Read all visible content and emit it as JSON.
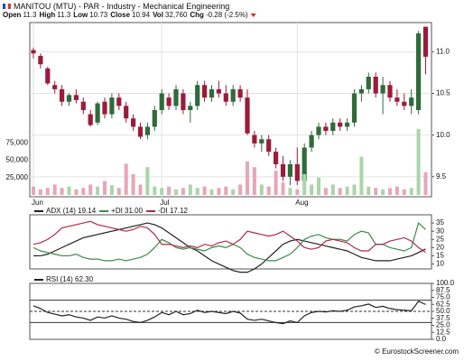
{
  "header": {
    "title": "MANITOU (MTU) - PAR - Industry - Mechanical Engineering",
    "quote": [
      {
        "label": "Open",
        "value": "11.3"
      },
      {
        "label": "High",
        "value": "11.3"
      },
      {
        "label": "Low",
        "value": "10.73"
      },
      {
        "label": "Close",
        "value": "10.94"
      },
      {
        "label": "Vol",
        "value": "32,760"
      },
      {
        "label": "Chg",
        "value": "-0.28 (-2.5%)"
      }
    ]
  },
  "chart_data": [
    {
      "type": "candlestick",
      "categories": [
        "Jun",
        null,
        null,
        null,
        null,
        null,
        null,
        null,
        null,
        null,
        null,
        null,
        null,
        null,
        null,
        null,
        null,
        null,
        "Jul",
        null,
        null,
        null,
        null,
        null,
        null,
        null,
        null,
        null,
        null,
        null,
        null,
        null,
        null,
        null,
        null,
        null,
        null,
        "Aug",
        null,
        null,
        null,
        null,
        null,
        null,
        null,
        null,
        null,
        null,
        null,
        null,
        null,
        null,
        null,
        null,
        null,
        null
      ],
      "open": [
        11.02,
        10.95,
        10.8,
        10.6,
        10.55,
        10.4,
        10.48,
        10.4,
        10.25,
        10.15,
        10.4,
        10.25,
        10.45,
        10.35,
        10.2,
        10.1,
        10.0,
        10.1,
        10.3,
        10.45,
        10.35,
        10.5,
        10.3,
        10.35,
        10.6,
        10.45,
        10.55,
        10.5,
        10.4,
        10.55,
        10.45,
        10.0,
        9.9,
        9.95,
        9.8,
        9.65,
        9.5,
        9.65,
        9.45,
        9.85,
        10.0,
        10.1,
        10.05,
        10.15,
        10.1,
        10.15,
        10.5,
        10.55,
        10.7,
        10.5,
        10.6,
        10.45,
        10.4,
        10.35,
        10.3,
        11.3
      ],
      "high": [
        11.05,
        10.98,
        10.82,
        10.65,
        10.6,
        10.5,
        10.55,
        10.45,
        10.3,
        10.4,
        10.45,
        10.5,
        10.5,
        10.4,
        10.25,
        10.15,
        10.15,
        10.35,
        10.55,
        10.5,
        10.6,
        10.55,
        10.4,
        10.65,
        10.65,
        10.6,
        10.65,
        10.6,
        10.6,
        10.6,
        10.55,
        10.05,
        10.0,
        10.0,
        9.85,
        9.75,
        9.7,
        9.85,
        9.9,
        10.05,
        10.15,
        10.15,
        10.2,
        10.2,
        10.2,
        10.55,
        10.6,
        10.75,
        10.75,
        10.7,
        10.65,
        10.55,
        10.5,
        10.55,
        11.25,
        11.3
      ],
      "low": [
        10.92,
        10.8,
        10.6,
        10.5,
        10.35,
        10.35,
        10.38,
        10.25,
        10.1,
        10.12,
        10.2,
        10.2,
        10.3,
        10.15,
        10.05,
        9.95,
        9.95,
        10.05,
        10.25,
        10.3,
        10.3,
        10.25,
        10.15,
        10.3,
        10.4,
        10.4,
        10.45,
        10.35,
        10.35,
        10.4,
        10.0,
        9.85,
        9.8,
        9.75,
        9.6,
        9.45,
        9.4,
        9.4,
        9.4,
        9.8,
        9.95,
        10.0,
        10.0,
        10.05,
        10.05,
        10.1,
        10.4,
        10.5,
        10.45,
        10.25,
        10.4,
        10.35,
        10.3,
        10.25,
        10.25,
        10.73
      ],
      "close": [
        10.98,
        10.85,
        10.62,
        10.55,
        10.4,
        10.48,
        10.42,
        10.3,
        10.12,
        10.38,
        10.25,
        10.45,
        10.35,
        10.2,
        10.1,
        9.98,
        10.1,
        10.3,
        10.5,
        10.35,
        10.55,
        10.3,
        10.35,
        10.6,
        10.45,
        10.55,
        10.5,
        10.4,
        10.55,
        10.45,
        10.02,
        9.9,
        9.95,
        9.8,
        9.65,
        9.5,
        9.65,
        9.45,
        9.85,
        10.0,
        10.1,
        10.05,
        10.15,
        10.1,
        10.15,
        10.5,
        10.55,
        10.7,
        10.5,
        10.6,
        10.45,
        10.4,
        10.35,
        10.45,
        11.22,
        10.94
      ],
      "up_color": "#2f6b3b",
      "down_color": "#9b1b3b",
      "ylim": [
        9.26,
        11.35
      ],
      "yticks": [
        {
          "value": 11,
          "label": "11.0"
        },
        10.5,
        {
          "value": 10,
          "label": "10.0"
        },
        9.5
      ],
      "grid": true
    },
    {
      "type": "bar",
      "values": [
        12000,
        8000,
        10000,
        15000,
        10000,
        12000,
        8000,
        10000,
        15000,
        12000,
        20000,
        14000,
        10000,
        45000,
        30000,
        15000,
        40000,
        12000,
        10000,
        12000,
        8000,
        10000,
        15000,
        10000,
        12000,
        8000,
        10000,
        12000,
        8000,
        15000,
        48000,
        40000,
        15000,
        12000,
        35000,
        18000,
        10000,
        8000,
        30000,
        15000,
        25000,
        10000,
        15000,
        10000,
        12000,
        15000,
        55000,
        12000,
        10000,
        8000,
        10000,
        12000,
        8000,
        10000,
        95000,
        32760
      ],
      "up_color": "#a9d5a9",
      "down_color": "#e9a5b5",
      "ylim": [
        0,
        100000
      ],
      "yticks": [
        {
          "value": 25000,
          "label": "25,000"
        },
        {
          "value": 50000,
          "label": "50,000"
        },
        {
          "value": 75000,
          "label": "75,000"
        }
      ]
    },
    {
      "type": "line",
      "series": [
        {
          "name": "ADX (14) 19.14",
          "color": "#222222",
          "values": [
            15,
            15,
            16,
            18,
            20,
            22,
            24,
            26,
            27,
            28,
            29,
            30,
            31,
            32,
            33,
            34,
            35,
            34,
            32,
            29,
            26,
            23,
            20,
            18,
            15,
            12,
            10,
            8,
            6,
            5,
            5,
            7,
            10,
            14,
            18,
            22,
            24,
            25,
            24,
            23,
            22,
            21,
            20,
            19,
            18,
            16,
            14,
            13,
            12,
            12,
            12,
            13,
            14,
            15,
            17,
            19.14
          ]
        },
        {
          "name": "+DI 31.00",
          "color": "#3a8a4a",
          "values": [
            20,
            18,
            17,
            16,
            15,
            15,
            16,
            14,
            13,
            13,
            12,
            12,
            13,
            12,
            13,
            14,
            16,
            20,
            25,
            23,
            20,
            19,
            20,
            19,
            18,
            20,
            21,
            20,
            22,
            20,
            16,
            14,
            13,
            12,
            12,
            14,
            16,
            20,
            25,
            27,
            28,
            26,
            25,
            25,
            24,
            28,
            30,
            29,
            22,
            22,
            20,
            19,
            18,
            20,
            35,
            31
          ]
        },
        {
          "name": "-DI 17.12",
          "color": "#b02a4a",
          "values": [
            22,
            23,
            25,
            28,
            32,
            33,
            34,
            35,
            36,
            34,
            33,
            32,
            31,
            30,
            31,
            33,
            32,
            28,
            22,
            22,
            21,
            20,
            21,
            20,
            22,
            21,
            23,
            24,
            22,
            25,
            30,
            29,
            28,
            27,
            28,
            30,
            27,
            24,
            20,
            19,
            20,
            24,
            25,
            24,
            23,
            20,
            18,
            18,
            22,
            22,
            24,
            25,
            26,
            24,
            20,
            17.12
          ]
        }
      ],
      "ylim": [
        7,
        40
      ],
      "yticks": [
        35,
        30,
        25,
        20,
        15,
        10
      ]
    },
    {
      "type": "line",
      "series": [
        {
          "name": "RSI (14) 62.30",
          "color": "#222222",
          "values": [
            60,
            55,
            48,
            45,
            42,
            44,
            40,
            38,
            34,
            40,
            38,
            42,
            38,
            36,
            32,
            30,
            34,
            40,
            48,
            44,
            50,
            44,
            46,
            52,
            48,
            50,
            48,
            46,
            50,
            47,
            36,
            34,
            36,
            33,
            30,
            28,
            33,
            30,
            42,
            48,
            50,
            49,
            51,
            50,
            52,
            58,
            60,
            63,
            57,
            59,
            55,
            53,
            52,
            51,
            68,
            62.3
          ]
        }
      ],
      "reference_lines": [
        70,
        50,
        30
      ],
      "ylim": [
        0,
        100
      ],
      "yticks": [
        {
          "value": 100,
          "label": "100.0"
        },
        87.5,
        {
          "value": 75,
          "label": "75.0"
        },
        62.5,
        {
          "value": 50,
          "label": "50.0"
        },
        37.5,
        {
          "value": 25,
          "label": "25.0"
        },
        12.5,
        {
          "value": 0,
          "label": "0.0"
        }
      ]
    }
  ],
  "footer": "© EurostockScreener.com"
}
